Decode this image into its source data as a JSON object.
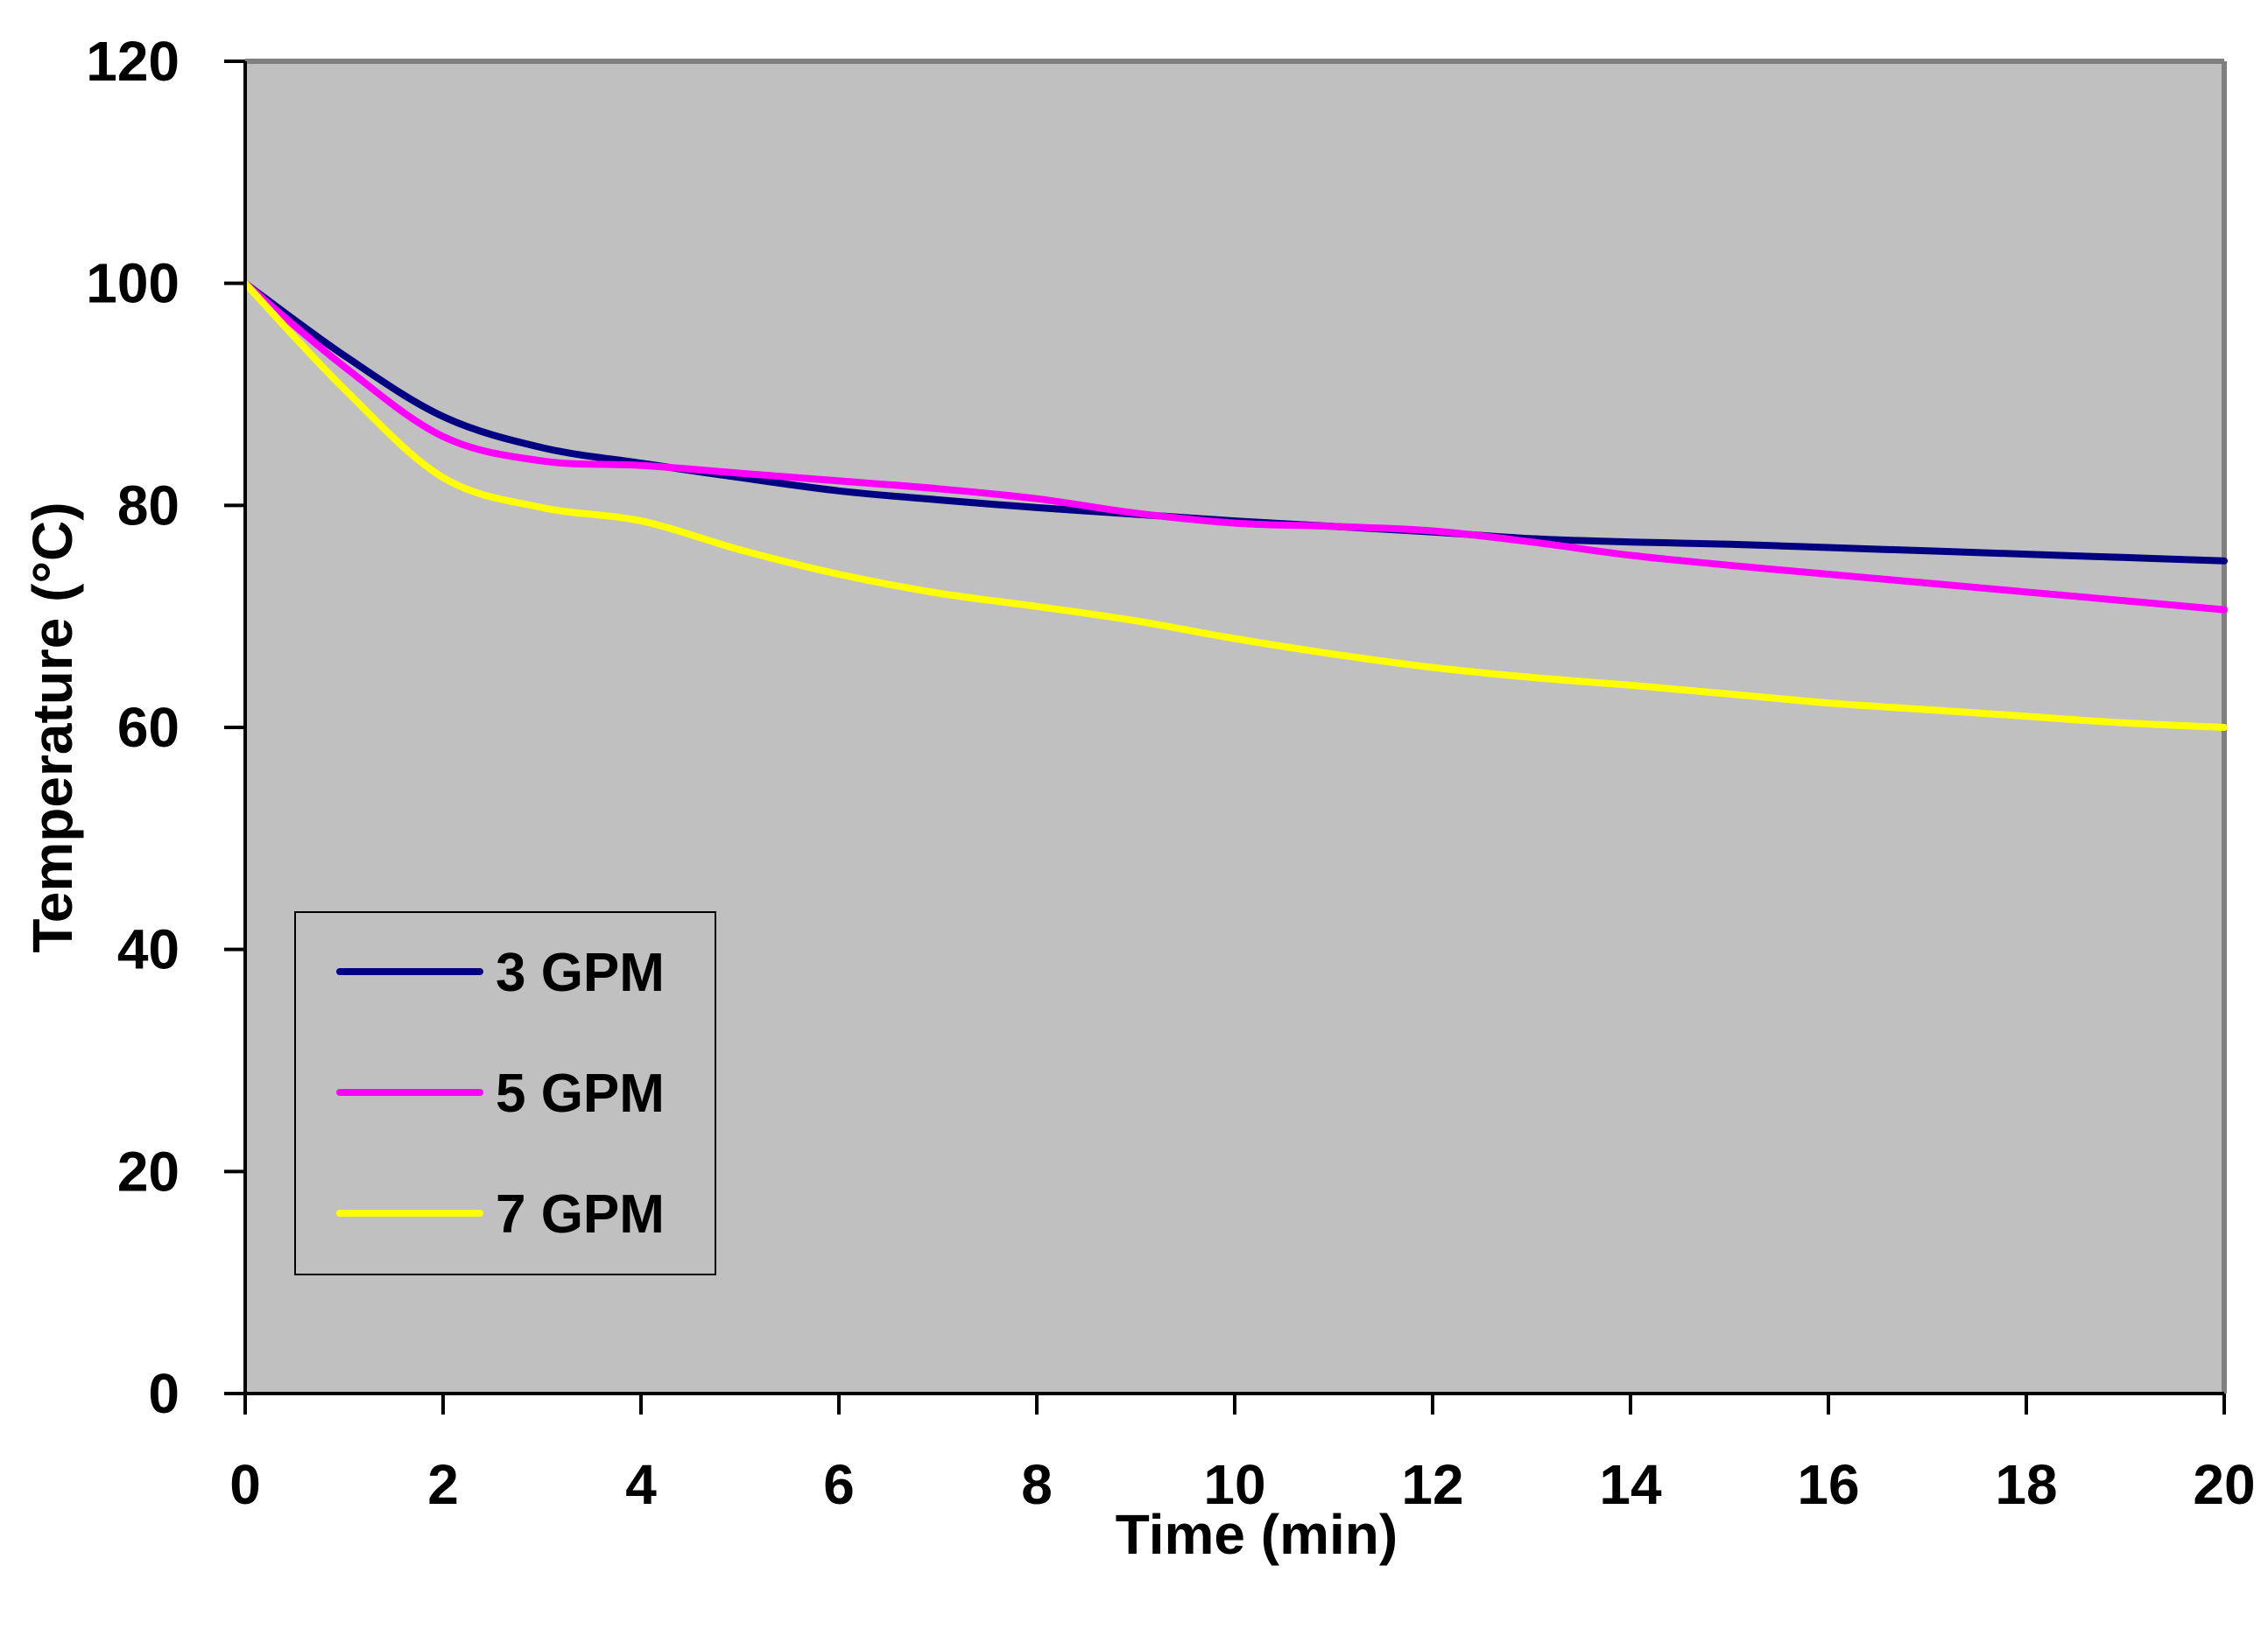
{
  "chart_data": {
    "type": "line",
    "title": "",
    "xlabel": "Time (min)",
    "ylabel": "Temperature (°C)",
    "xlim": [
      0,
      20
    ],
    "ylim": [
      0,
      120
    ],
    "xticks": [
      0,
      2,
      4,
      6,
      8,
      10,
      12,
      14,
      16,
      18,
      20
    ],
    "yticks": [
      0,
      20,
      40,
      60,
      80,
      100,
      120
    ],
    "xtick_labels": [
      "0",
      "2",
      "4",
      "6",
      "8",
      "10",
      "12",
      "14",
      "16",
      "18",
      "20"
    ],
    "ytick_labels": [
      "0",
      "20",
      "40",
      "60",
      "80",
      "100",
      "120"
    ],
    "grid": false,
    "plot_background": "#c0c0c0",
    "legend_position": "lower-left",
    "series": [
      {
        "name": "3 GPM",
        "color": "#000080",
        "x": [
          0,
          1,
          2,
          3,
          4,
          5,
          6,
          7,
          8,
          9,
          10,
          11,
          12,
          13,
          14,
          15,
          16,
          17,
          18,
          19,
          20
        ],
        "values": [
          100,
          93.5,
          88.0,
          85.2,
          83.8,
          82.5,
          81.3,
          80.5,
          79.8,
          79.2,
          78.6,
          78.1,
          77.6,
          77.0,
          76.7,
          76.5,
          76.2,
          75.9,
          75.6,
          75.3,
          75.0
        ]
      },
      {
        "name": "5 GPM",
        "color": "#ff00ff",
        "x": [
          0,
          1,
          2,
          3,
          4,
          5,
          6,
          7,
          8,
          9,
          10,
          11,
          12,
          13,
          14,
          15,
          16,
          17,
          18,
          19,
          20
        ],
        "values": [
          100,
          92.5,
          86.2,
          84.0,
          83.6,
          82.9,
          82.2,
          81.5,
          80.6,
          79.3,
          78.4,
          78.1,
          77.7,
          76.7,
          75.5,
          74.6,
          73.8,
          73.0,
          72.2,
          71.4,
          70.6
        ]
      },
      {
        "name": "7 GPM",
        "color": "#ffff00",
        "x": [
          0,
          1,
          2,
          3,
          4,
          5,
          6,
          7,
          8,
          9,
          10,
          11,
          12,
          13,
          14,
          15,
          16,
          17,
          18,
          19,
          20
        ],
        "values": [
          100,
          90.5,
          82.5,
          79.8,
          78.6,
          76.0,
          73.8,
          72.1,
          70.9,
          69.6,
          68.0,
          66.6,
          65.4,
          64.5,
          63.8,
          63.0,
          62.2,
          61.6,
          61.0,
          60.4,
          60.0
        ]
      }
    ]
  }
}
